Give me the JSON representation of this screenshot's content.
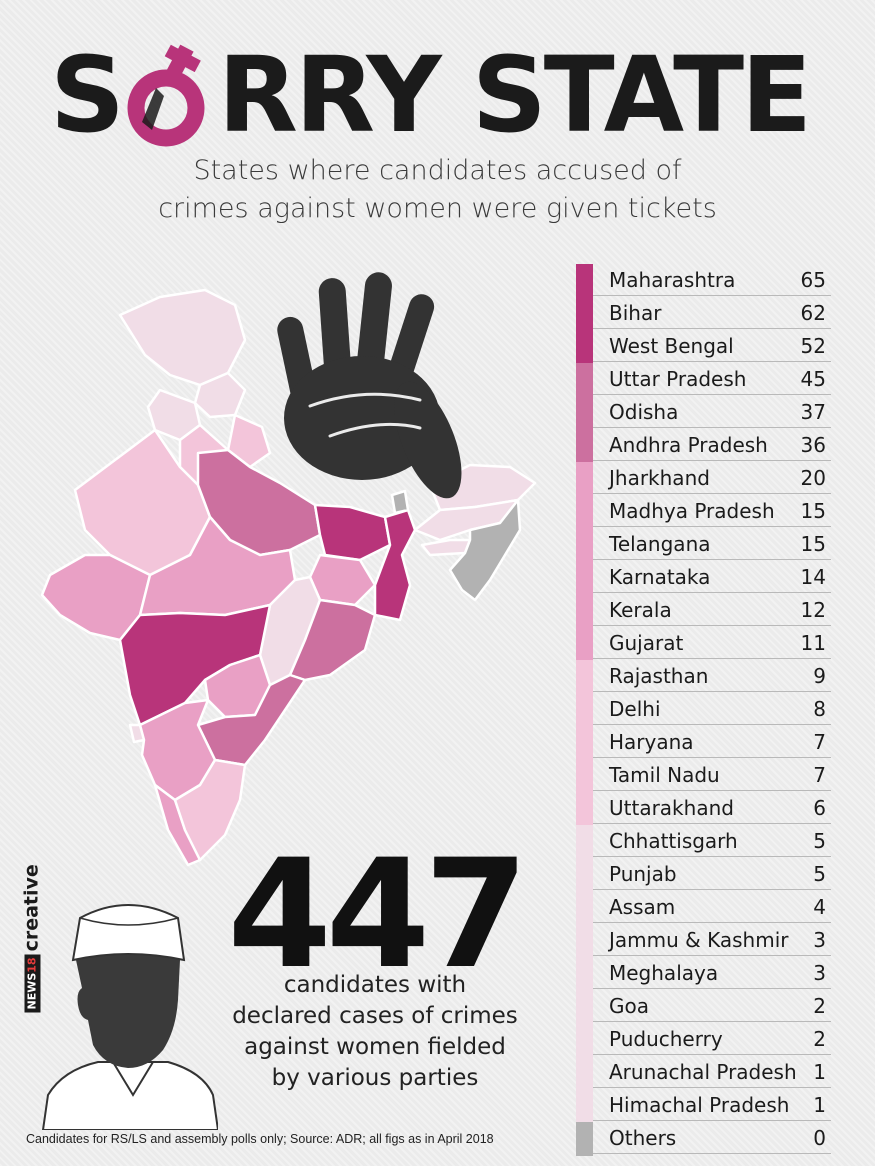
{
  "title": {
    "pre": "S",
    "post": "RRY STATE"
  },
  "subtitle": {
    "line1": "States where candidates accused of",
    "line2": "crimes against women were given tickets"
  },
  "colors": {
    "tier1": "#b8347a",
    "tier2": "#cc709f",
    "tier3": "#e9a0c5",
    "tier4": "#f3c5da",
    "tier5": "#f1dde7",
    "others": "#b2b2b2",
    "accent": "#b8347a",
    "dark": "#1b1b1b"
  },
  "icons": {
    "female_symbol": "female-symbol-icon",
    "hand": "raised-hand-icon",
    "politician": "politician-silhouette-icon"
  },
  "chart_data": {
    "type": "table",
    "title": "SORRY STATE",
    "subtitle": "States where candidates accused of crimes against women were given tickets",
    "rows": [
      {
        "state": "Maharashtra",
        "value": 65,
        "tier": 1
      },
      {
        "state": "Bihar",
        "value": 62,
        "tier": 1
      },
      {
        "state": "West Bengal",
        "value": 52,
        "tier": 1
      },
      {
        "state": "Uttar Pradesh",
        "value": 45,
        "tier": 2
      },
      {
        "state": "Odisha",
        "value": 37,
        "tier": 2
      },
      {
        "state": "Andhra Pradesh",
        "value": 36,
        "tier": 2
      },
      {
        "state": "Jharkhand",
        "value": 20,
        "tier": 3
      },
      {
        "state": "Madhya Pradesh",
        "value": 15,
        "tier": 3
      },
      {
        "state": "Telangana",
        "value": 15,
        "tier": 3
      },
      {
        "state": "Karnataka",
        "value": 14,
        "tier": 3
      },
      {
        "state": "Kerala",
        "value": 12,
        "tier": 3
      },
      {
        "state": "Gujarat",
        "value": 11,
        "tier": 3
      },
      {
        "state": "Rajasthan",
        "value": 9,
        "tier": 4
      },
      {
        "state": "Delhi",
        "value": 8,
        "tier": 4
      },
      {
        "state": "Haryana",
        "value": 7,
        "tier": 4
      },
      {
        "state": "Tamil Nadu",
        "value": 7,
        "tier": 4
      },
      {
        "state": "Uttarakhand",
        "value": 6,
        "tier": 4
      },
      {
        "state": "Chhattisgarh",
        "value": 5,
        "tier": 5
      },
      {
        "state": "Punjab",
        "value": 5,
        "tier": 5
      },
      {
        "state": "Assam",
        "value": 4,
        "tier": 5
      },
      {
        "state": "Jammu & Kashmir",
        "value": 3,
        "tier": 5
      },
      {
        "state": "Meghalaya",
        "value": 3,
        "tier": 5
      },
      {
        "state": "Goa",
        "value": 2,
        "tier": 5
      },
      {
        "state": "Puducherry",
        "value": 2,
        "tier": 5
      },
      {
        "state": "Arunachal Pradesh",
        "value": 1,
        "tier": 5
      },
      {
        "state": "Himachal Pradesh",
        "value": 1,
        "tier": 5
      },
      {
        "state": "Others",
        "value": 0,
        "tier": 0
      }
    ],
    "map": {
      "Jammu & Kashmir": 3,
      "Himachal Pradesh": 1,
      "Punjab": 5,
      "Uttarakhand": 6,
      "Haryana": 7,
      "Delhi": 8,
      "Rajasthan": 9,
      "Uttar Pradesh": 45,
      "Bihar": 62,
      "Gujarat": 11,
      "Madhya Pradesh": 15,
      "Jharkhand": 20,
      "West Bengal": 52,
      "Chhattisgarh": 5,
      "Odisha": 37,
      "Maharashtra": 65,
      "Telangana": 15,
      "Andhra Pradesh": 36,
      "Karnataka": 14,
      "Goa": 2,
      "Kerala": 12,
      "Tamil Nadu": 7,
      "Assam": 4,
      "Meghalaya": 3,
      "Arunachal Pradesh": 1,
      "Others": 0
    }
  },
  "total": {
    "value": "447",
    "caption1": "candidates with",
    "caption2": "declared cases of crimes",
    "caption3": "against women fielded",
    "caption4": "by various parties"
  },
  "brand": {
    "news": "NEWS",
    "num": "18",
    "word": "creative"
  },
  "footer": "Candidates for RS/LS and assembly polls only; Source: ADR; all figs as in April 2018"
}
